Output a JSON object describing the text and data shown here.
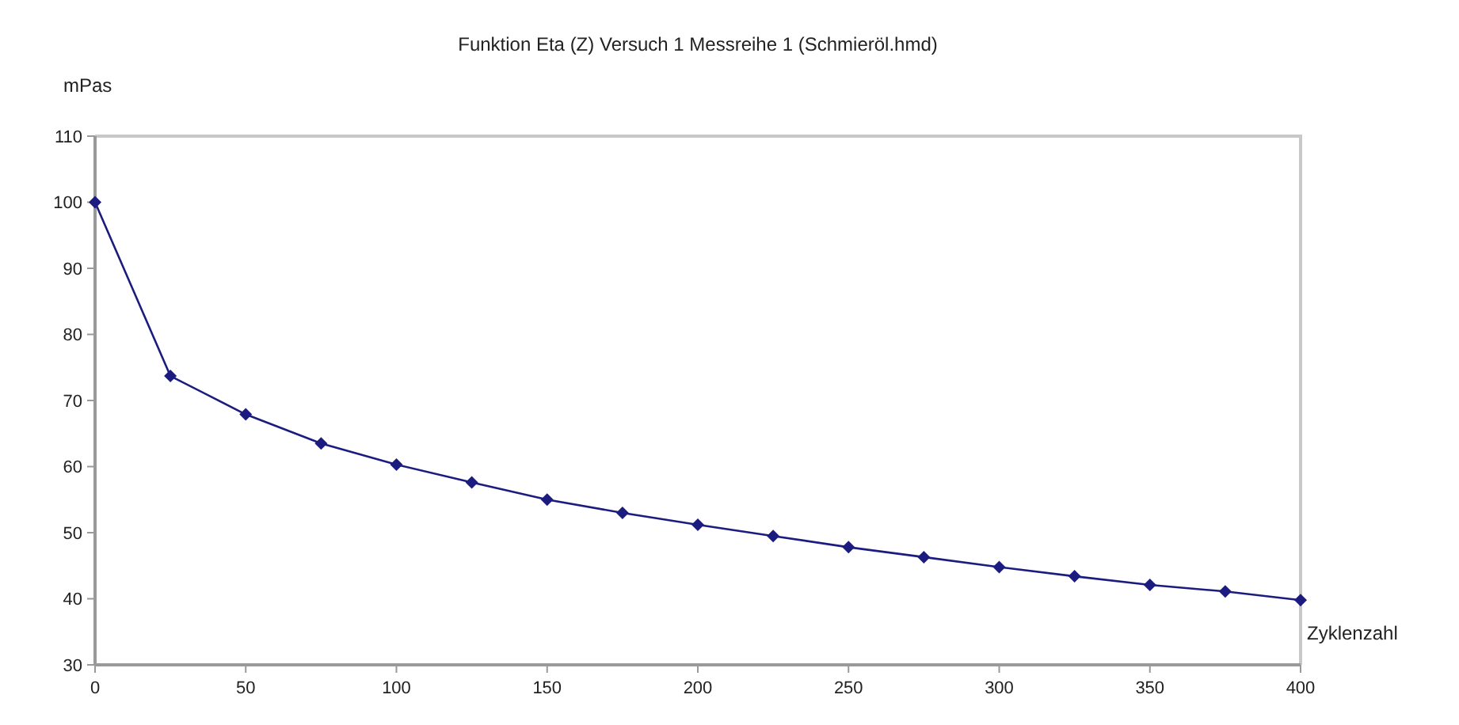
{
  "chart_data": {
    "type": "line",
    "title": "Funktion Eta (Z) Versuch 1 Messreihe 1 (Schmieröl.hmd)",
    "xlabel": "Zyklenzahl",
    "ylabel": "mPas",
    "x": [
      0,
      25,
      50,
      75,
      100,
      125,
      150,
      175,
      200,
      225,
      250,
      275,
      300,
      325,
      350,
      375,
      400
    ],
    "series": [
      {
        "color": "#1c1c80",
        "values": [
          100,
          73.7,
          67.9,
          63.5,
          60.3,
          57.6,
          55.0,
          53.0,
          51.2,
          49.5,
          47.8,
          46.3,
          44.8,
          43.4,
          42.1,
          41.1,
          39.8
        ]
      }
    ],
    "xlim": [
      0,
      400
    ],
    "xticks": [
      0,
      50,
      100,
      150,
      200,
      250,
      300,
      350,
      400
    ],
    "ylim": [
      30,
      110
    ],
    "yticks": [
      30,
      40,
      50,
      60,
      70,
      80,
      90,
      100,
      110
    ],
    "marker": "diamond",
    "line_style": "solid"
  }
}
